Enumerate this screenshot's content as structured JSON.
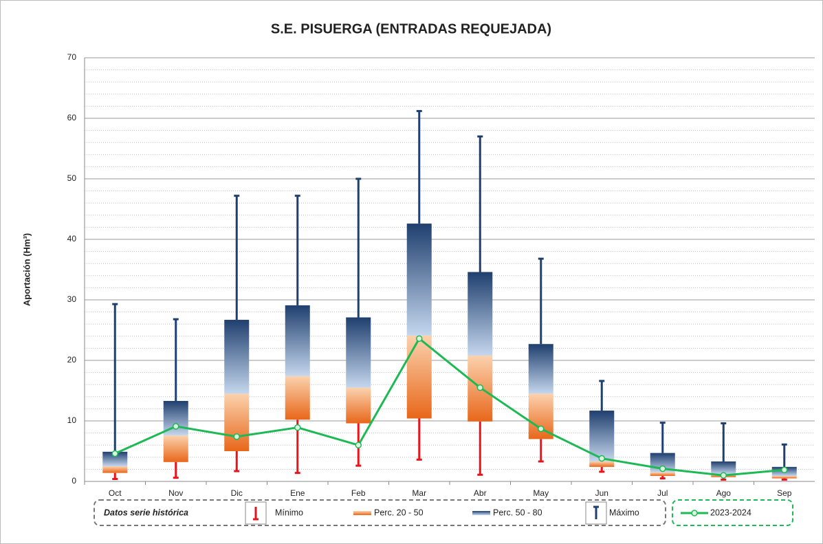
{
  "chart_data": {
    "type": "box",
    "title": "S.E. PISUERGA (ENTRADAS REQUEJADA)",
    "y_label": "Aportación (Hm³)",
    "legend_title": "Datos serie histórica",
    "categories": [
      "Oct",
      "Nov",
      "Dic",
      "Ene",
      "Feb",
      "Mar",
      "Abr",
      "May",
      "Jun",
      "Jul",
      "Ago",
      "Sep"
    ],
    "ylim": [
      0,
      70
    ],
    "yticks": [
      0,
      10,
      20,
      30,
      40,
      50,
      60,
      70
    ],
    "grid": true,
    "minor_grid_step": 2,
    "series": [
      {
        "name": "Mínimo",
        "color": "#e8141b",
        "values": [
          0.4,
          0.6,
          1.7,
          1.4,
          2.6,
          3.6,
          1.1,
          3.3,
          1.6,
          0.5,
          0.3,
          0.3
        ]
      },
      {
        "name": "Perc. 20 - 50",
        "color": "#e8671a",
        "low": [
          1.4,
          3.2,
          5.0,
          10.2,
          9.6,
          10.4,
          9.9,
          7.0,
          2.4,
          0.9,
          0.7,
          0.5
        ],
        "values": [
          2.5,
          7.6,
          14.5,
          17.4,
          15.5,
          24.1,
          20.8,
          14.5,
          3.3,
          1.5,
          1.2,
          0.9
        ]
      },
      {
        "name": "Perc. 50 - 80",
        "color": "#1f3f6e",
        "values": [
          4.9,
          13.3,
          26.7,
          29.1,
          27.1,
          42.6,
          34.6,
          22.7,
          11.7,
          4.7,
          3.3,
          2.4
        ]
      },
      {
        "name": "Máximo",
        "color": "#1f3f6e",
        "values": [
          29.3,
          26.8,
          47.2,
          47.2,
          50.0,
          61.2,
          57.0,
          36.8,
          16.6,
          9.7,
          9.6,
          6.1
        ]
      },
      {
        "name": "2023-2024",
        "color": "#1db954",
        "values": [
          4.6,
          9.1,
          7.4,
          8.9,
          6.0,
          23.6,
          15.5,
          8.7,
          3.8,
          2.1,
          1.0,
          1.9
        ]
      }
    ]
  }
}
